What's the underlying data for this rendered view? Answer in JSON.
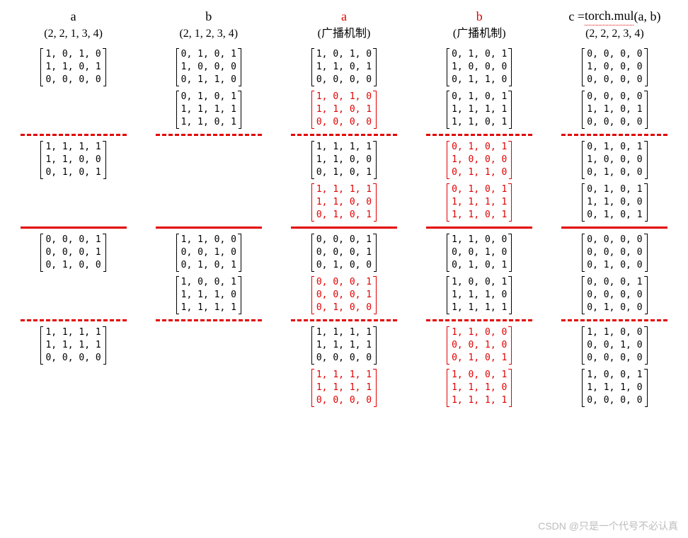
{
  "watermark": "CSDN @只是一个代号不必认真",
  "columns": [
    {
      "title": "a",
      "title_color": "black",
      "shape": "(2, 2, 1, 3, 4)",
      "sections": [
        {
          "matrices": [
            {
              "color": "black",
              "rows": [
                [
                  1,
                  0,
                  1,
                  0
                ],
                [
                  1,
                  1,
                  0,
                  1
                ],
                [
                  0,
                  0,
                  0,
                  0
                ]
              ]
            },
            null
          ],
          "divider_after": "dashed"
        },
        {
          "matrices": [
            {
              "color": "black",
              "rows": [
                [
                  1,
                  1,
                  1,
                  1
                ],
                [
                  1,
                  1,
                  0,
                  0
                ],
                [
                  0,
                  1,
                  0,
                  1
                ]
              ]
            },
            null
          ],
          "divider_after": "solid"
        },
        {
          "matrices": [
            {
              "color": "black",
              "rows": [
                [
                  0,
                  0,
                  0,
                  1
                ],
                [
                  0,
                  0,
                  0,
                  1
                ],
                [
                  0,
                  1,
                  0,
                  0
                ]
              ]
            },
            null
          ],
          "divider_after": "dashed"
        },
        {
          "matrices": [
            {
              "color": "black",
              "rows": [
                [
                  1,
                  1,
                  1,
                  1
                ],
                [
                  1,
                  1,
                  1,
                  1
                ],
                [
                  0,
                  0,
                  0,
                  0
                ]
              ]
            },
            null
          ],
          "divider_after": null
        }
      ]
    },
    {
      "title": "b",
      "title_color": "black",
      "shape": "(2, 1, 2, 3, 4)",
      "sections": [
        {
          "matrices": [
            {
              "color": "black",
              "rows": [
                [
                  0,
                  1,
                  0,
                  1
                ],
                [
                  1,
                  0,
                  0,
                  0
                ],
                [
                  0,
                  1,
                  1,
                  0
                ]
              ]
            },
            {
              "color": "black",
              "rows": [
                [
                  0,
                  1,
                  0,
                  1
                ],
                [
                  1,
                  1,
                  1,
                  1
                ],
                [
                  1,
                  1,
                  0,
                  1
                ]
              ]
            }
          ],
          "divider_after": "dashed"
        },
        {
          "matrices": [
            null,
            null
          ],
          "divider_after": "solid"
        },
        {
          "matrices": [
            {
              "color": "black",
              "rows": [
                [
                  1,
                  1,
                  0,
                  0
                ],
                [
                  0,
                  0,
                  1,
                  0
                ],
                [
                  0,
                  1,
                  0,
                  1
                ]
              ]
            },
            {
              "color": "black",
              "rows": [
                [
                  1,
                  0,
                  0,
                  1
                ],
                [
                  1,
                  1,
                  1,
                  0
                ],
                [
                  1,
                  1,
                  1,
                  1
                ]
              ]
            }
          ],
          "divider_after": "dashed"
        },
        {
          "matrices": [
            null,
            null
          ],
          "divider_after": null
        }
      ]
    },
    {
      "title": "a",
      "title_color": "red",
      "shape": "(广播机制)",
      "sections": [
        {
          "matrices": [
            {
              "color": "black",
              "rows": [
                [
                  1,
                  0,
                  1,
                  0
                ],
                [
                  1,
                  1,
                  0,
                  1
                ],
                [
                  0,
                  0,
                  0,
                  0
                ]
              ]
            },
            {
              "color": "red",
              "rows": [
                [
                  1,
                  0,
                  1,
                  0
                ],
                [
                  1,
                  1,
                  0,
                  1
                ],
                [
                  0,
                  0,
                  0,
                  0
                ]
              ]
            }
          ],
          "divider_after": "dashed"
        },
        {
          "matrices": [
            {
              "color": "black",
              "rows": [
                [
                  1,
                  1,
                  1,
                  1
                ],
                [
                  1,
                  1,
                  0,
                  0
                ],
                [
                  0,
                  1,
                  0,
                  1
                ]
              ]
            },
            {
              "color": "red",
              "rows": [
                [
                  1,
                  1,
                  1,
                  1
                ],
                [
                  1,
                  1,
                  0,
                  0
                ],
                [
                  0,
                  1,
                  0,
                  1
                ]
              ]
            }
          ],
          "divider_after": "solid"
        },
        {
          "matrices": [
            {
              "color": "black",
              "rows": [
                [
                  0,
                  0,
                  0,
                  1
                ],
                [
                  0,
                  0,
                  0,
                  1
                ],
                [
                  0,
                  1,
                  0,
                  0
                ]
              ]
            },
            {
              "color": "red",
              "rows": [
                [
                  0,
                  0,
                  0,
                  1
                ],
                [
                  0,
                  0,
                  0,
                  1
                ],
                [
                  0,
                  1,
                  0,
                  0
                ]
              ]
            }
          ],
          "divider_after": "dashed"
        },
        {
          "matrices": [
            {
              "color": "black",
              "rows": [
                [
                  1,
                  1,
                  1,
                  1
                ],
                [
                  1,
                  1,
                  1,
                  1
                ],
                [
                  0,
                  0,
                  0,
                  0
                ]
              ]
            },
            {
              "color": "red",
              "rows": [
                [
                  1,
                  1,
                  1,
                  1
                ],
                [
                  1,
                  1,
                  1,
                  1
                ],
                [
                  0,
                  0,
                  0,
                  0
                ]
              ]
            }
          ],
          "divider_after": null
        }
      ]
    },
    {
      "title": "b",
      "title_color": "red",
      "shape": "(广播机制)",
      "sections": [
        {
          "matrices": [
            {
              "color": "black",
              "rows": [
                [
                  0,
                  1,
                  0,
                  1
                ],
                [
                  1,
                  0,
                  0,
                  0
                ],
                [
                  0,
                  1,
                  1,
                  0
                ]
              ]
            },
            {
              "color": "black",
              "rows": [
                [
                  0,
                  1,
                  0,
                  1
                ],
                [
                  1,
                  1,
                  1,
                  1
                ],
                [
                  1,
                  1,
                  0,
                  1
                ]
              ]
            }
          ],
          "divider_after": "dashed"
        },
        {
          "matrices": [
            {
              "color": "red",
              "rows": [
                [
                  0,
                  1,
                  0,
                  1
                ],
                [
                  1,
                  0,
                  0,
                  0
                ],
                [
                  0,
                  1,
                  1,
                  0
                ]
              ]
            },
            {
              "color": "red",
              "rows": [
                [
                  0,
                  1,
                  0,
                  1
                ],
                [
                  1,
                  1,
                  1,
                  1
                ],
                [
                  1,
                  1,
                  0,
                  1
                ]
              ]
            }
          ],
          "divider_after": "solid"
        },
        {
          "matrices": [
            {
              "color": "black",
              "rows": [
                [
                  1,
                  1,
                  0,
                  0
                ],
                [
                  0,
                  0,
                  1,
                  0
                ],
                [
                  0,
                  1,
                  0,
                  1
                ]
              ]
            },
            {
              "color": "black",
              "rows": [
                [
                  1,
                  0,
                  0,
                  1
                ],
                [
                  1,
                  1,
                  1,
                  0
                ],
                [
                  1,
                  1,
                  1,
                  1
                ]
              ]
            }
          ],
          "divider_after": "dashed"
        },
        {
          "matrices": [
            {
              "color": "red",
              "rows": [
                [
                  1,
                  1,
                  0,
                  0
                ],
                [
                  0,
                  0,
                  1,
                  0
                ],
                [
                  0,
                  1,
                  0,
                  1
                ]
              ]
            },
            {
              "color": "red",
              "rows": [
                [
                  1,
                  0,
                  0,
                  1
                ],
                [
                  1,
                  1,
                  1,
                  0
                ],
                [
                  1,
                  1,
                  1,
                  1
                ]
              ]
            }
          ],
          "divider_after": null
        }
      ]
    },
    {
      "title_html": true,
      "title": "c = torch.mul(a, b)",
      "title_underline_part": "torch.mul",
      "title_color": "black",
      "shape": "(2, 2, 2, 3, 4)",
      "sections": [
        {
          "matrices": [
            {
              "color": "black",
              "rows": [
                [
                  0,
                  0,
                  0,
                  0
                ],
                [
                  1,
                  0,
                  0,
                  0
                ],
                [
                  0,
                  0,
                  0,
                  0
                ]
              ]
            },
            {
              "color": "black",
              "rows": [
                [
                  0,
                  0,
                  0,
                  0
                ],
                [
                  1,
                  1,
                  0,
                  1
                ],
                [
                  0,
                  0,
                  0,
                  0
                ]
              ]
            }
          ],
          "divider_after": "dashed"
        },
        {
          "matrices": [
            {
              "color": "black",
              "rows": [
                [
                  0,
                  1,
                  0,
                  1
                ],
                [
                  1,
                  0,
                  0,
                  0
                ],
                [
                  0,
                  1,
                  0,
                  0
                ]
              ]
            },
            {
              "color": "black",
              "rows": [
                [
                  0,
                  1,
                  0,
                  1
                ],
                [
                  1,
                  1,
                  0,
                  0
                ],
                [
                  0,
                  1,
                  0,
                  1
                ]
              ]
            }
          ],
          "divider_after": "solid"
        },
        {
          "matrices": [
            {
              "color": "black",
              "rows": [
                [
                  0,
                  0,
                  0,
                  0
                ],
                [
                  0,
                  0,
                  0,
                  0
                ],
                [
                  0,
                  1,
                  0,
                  0
                ]
              ]
            },
            {
              "color": "black",
              "rows": [
                [
                  0,
                  0,
                  0,
                  1
                ],
                [
                  0,
                  0,
                  0,
                  0
                ],
                [
                  0,
                  1,
                  0,
                  0
                ]
              ]
            }
          ],
          "divider_after": "dashed"
        },
        {
          "matrices": [
            {
              "color": "black",
              "rows": [
                [
                  1,
                  1,
                  0,
                  0
                ],
                [
                  0,
                  0,
                  1,
                  0
                ],
                [
                  0,
                  0,
                  0,
                  0
                ]
              ]
            },
            {
              "color": "black",
              "rows": [
                [
                  1,
                  0,
                  0,
                  1
                ],
                [
                  1,
                  1,
                  1,
                  0
                ],
                [
                  0,
                  0,
                  0,
                  0
                ]
              ]
            }
          ],
          "divider_after": null
        }
      ]
    }
  ],
  "style": {
    "red": "#e20000",
    "black": "#000000",
    "divider_dashed_width": 150,
    "divider_solid_width": 150,
    "font_family": "Times New Roman, SimSun, serif",
    "mono_family": "Consolas, Menlo, monospace",
    "matrix_font_size": 13,
    "title_font_size": 18,
    "shape_font_size": 16
  }
}
